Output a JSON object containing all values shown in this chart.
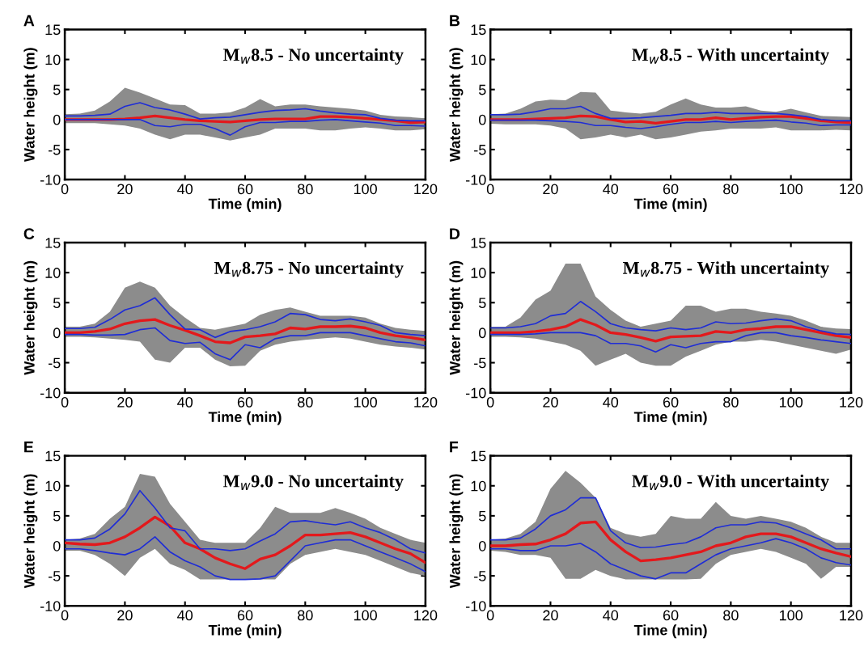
{
  "chart_data": [
    {
      "type": "line",
      "title": "M$_{w}$8.5 - No uncertainty",
      "annotations": [
        "A"
      ],
      "xlabel": "Time (min)",
      "ylabel": "Water height (m)",
      "xlim": [
        0,
        120
      ],
      "xticks": [
        0,
        20,
        40,
        60,
        80,
        100,
        120
      ],
      "ylim": [
        -10,
        15
      ],
      "yticks": [
        -10,
        -5,
        0,
        5,
        10,
        15
      ],
      "grid": false,
      "legend": false,
      "x": [
        0,
        5,
        10,
        15,
        20,
        25,
        30,
        35,
        40,
        45,
        50,
        55,
        60,
        65,
        70,
        75,
        80,
        85,
        90,
        95,
        100,
        105,
        110,
        115,
        120
      ],
      "series": [
        {
          "type": "line",
          "color": "#1f2dd6",
          "values": [
            0.6,
            0.6,
            0.7,
            0.9,
            2.2,
            2.8,
            2.0,
            1.6,
            0.9,
            0.1,
            0.3,
            0.4,
            0.8,
            1.2,
            1.5,
            1.6,
            1.8,
            1.4,
            1.1,
            0.9,
            0.8,
            0.2,
            -0.1,
            -0.2,
            -0.2
          ]
        },
        {
          "type": "line",
          "color": "#1f2dd6",
          "values": [
            0,
            0,
            0,
            0,
            0,
            0,
            -1.0,
            -1.2,
            -0.8,
            -0.8,
            -1.5,
            -2.6,
            -1.2,
            -0.5,
            -0.5,
            -0.3,
            -0.3,
            -0.1,
            0,
            -0.2,
            -0.4,
            -0.6,
            -1.0,
            -1.0,
            -1.1
          ]
        },
        {
          "type": "line",
          "color": "#e3191c",
          "values": [
            0,
            0,
            0,
            0,
            0.1,
            0.3,
            0.6,
            0.3,
            0,
            -0.2,
            -0.3,
            -0.4,
            -0.2,
            0,
            0.1,
            0.1,
            0.1,
            0.5,
            0.5,
            0.4,
            0.2,
            0,
            -0.2,
            -0.5,
            -0.4
          ],
          "upper": [
            0.9,
            1.0,
            1.5,
            3.0,
            5.3,
            4.5,
            3.5,
            2.5,
            2.4,
            1.0,
            1.0,
            1.2,
            2.0,
            3.4,
            2.2,
            2.5,
            2.5,
            2.2,
            2.0,
            1.8,
            1.5,
            0.8,
            0.5,
            0.4,
            0.2
          ],
          "lower": [
            -0.6,
            -0.6,
            -0.6,
            -0.8,
            -1.0,
            -1.5,
            -2.5,
            -3.3,
            -2.5,
            -2.5,
            -3.0,
            -3.5,
            -3.0,
            -2.5,
            -1.5,
            -1.5,
            -1.5,
            -1.8,
            -1.8,
            -1.5,
            -1.3,
            -1.5,
            -1.8,
            -1.8,
            -1.6
          ]
        }
      ]
    },
    {
      "type": "line",
      "title": "M$_{w}$8.5 - With uncertainty",
      "annotations": [
        "B"
      ],
      "xlabel": "Time (min)",
      "ylabel": "Water height (m)",
      "xlim": [
        0,
        120
      ],
      "xticks": [
        0,
        20,
        40,
        60,
        80,
        100,
        120
      ],
      "ylim": [
        -10,
        15
      ],
      "yticks": [
        -10,
        -5,
        0,
        5,
        10,
        15
      ],
      "grid": false,
      "legend": false,
      "x": [
        0,
        5,
        10,
        15,
        20,
        25,
        30,
        35,
        40,
        45,
        50,
        55,
        60,
        65,
        70,
        75,
        80,
        85,
        90,
        95,
        100,
        105,
        110,
        115,
        120
      ],
      "series": [
        {
          "type": "line",
          "color": "#1f2dd6",
          "values": [
            0.8,
            0.8,
            0.9,
            1.3,
            1.8,
            1.8,
            2.2,
            1.0,
            0.2,
            0.2,
            0.3,
            0.5,
            0.7,
            1.0,
            1.0,
            1.2,
            1.0,
            1.0,
            1.0,
            1.0,
            0.8,
            0.5,
            0,
            -0.2,
            -0.2
          ]
        },
        {
          "type": "line",
          "color": "#1f2dd6",
          "values": [
            -0.1,
            -0.1,
            -0.1,
            -0.1,
            -0.2,
            -0.3,
            -0.5,
            -1.0,
            -1.0,
            -1.3,
            -1.5,
            -1.2,
            -0.8,
            -0.5,
            -0.5,
            -0.3,
            -0.5,
            -0.3,
            -0.2,
            -0.1,
            -0.4,
            -0.6,
            -1.0,
            -0.9,
            -0.9
          ]
        },
        {
          "type": "line",
          "color": "#e3191c",
          "values": [
            0,
            0,
            0,
            0.1,
            0.2,
            0.3,
            0.6,
            0.5,
            0,
            -0.4,
            -0.3,
            -0.6,
            -0.3,
            0,
            0,
            0.3,
            0,
            0.2,
            0.4,
            0.5,
            0.5,
            0.2,
            -0.2,
            -0.4,
            -0.5
          ],
          "upper": [
            0.9,
            1.0,
            1.8,
            3.0,
            3.3,
            3.2,
            4.6,
            4.5,
            1.5,
            1.2,
            1.0,
            1.3,
            2.5,
            3.5,
            2.5,
            2.0,
            2.0,
            2.2,
            1.5,
            1.3,
            1.8,
            1.2,
            0.6,
            0.5,
            0.4
          ],
          "lower": [
            -0.7,
            -0.8,
            -0.8,
            -0.8,
            -1.0,
            -1.5,
            -3.3,
            -3.0,
            -2.5,
            -3.0,
            -2.5,
            -3.3,
            -3.0,
            -2.5,
            -2.0,
            -1.8,
            -1.5,
            -1.5,
            -1.5,
            -1.3,
            -1.8,
            -1.8,
            -1.8,
            -1.7,
            -1.8
          ]
        }
      ]
    },
    {
      "type": "line",
      "title": "M$_{w}$8.75 - No uncertainty",
      "annotations": [
        "C"
      ],
      "xlabel": "Time (min)",
      "ylabel": "Water height (m)",
      "xlim": [
        0,
        120
      ],
      "xticks": [
        0,
        20,
        40,
        60,
        80,
        100,
        120
      ],
      "ylim": [
        -10,
        15
      ],
      "yticks": [
        -10,
        -5,
        0,
        5,
        10,
        15
      ],
      "grid": false,
      "legend": false,
      "x": [
        0,
        5,
        10,
        15,
        20,
        25,
        30,
        35,
        40,
        45,
        50,
        55,
        60,
        65,
        70,
        75,
        80,
        85,
        90,
        95,
        100,
        105,
        110,
        115,
        120
      ],
      "series": [
        {
          "type": "line",
          "color": "#1f2dd6",
          "values": [
            0.7,
            0.7,
            0.9,
            2.2,
            3.8,
            4.5,
            5.8,
            3.0,
            0.6,
            0.5,
            -0.8,
            0.2,
            0.5,
            1.0,
            1.8,
            3.2,
            3.0,
            2.2,
            2.0,
            2.3,
            1.8,
            1.2,
            0,
            -0.3,
            -0.5
          ]
        },
        {
          "type": "line",
          "color": "#1f2dd6",
          "values": [
            -0.3,
            -0.3,
            -0.4,
            -0.4,
            -0.3,
            0.5,
            0.8,
            -1.3,
            -1.8,
            -1.6,
            -3.5,
            -4.5,
            -2.0,
            -2.5,
            -1.0,
            -0.5,
            -0.5,
            0,
            0,
            0,
            -0.5,
            -1.0,
            -1.5,
            -1.7,
            -2.2
          ]
        },
        {
          "type": "line",
          "color": "#e3191c",
          "values": [
            0,
            0,
            0.2,
            0.6,
            1.5,
            2.0,
            2.2,
            1.2,
            0.4,
            -0.5,
            -1.5,
            -1.7,
            -0.7,
            -0.5,
            -0.2,
            0.8,
            0.6,
            1.0,
            1.0,
            1.1,
            0.8,
            0,
            -0.5,
            -0.8,
            -1.2
          ],
          "upper": [
            1.0,
            1.0,
            1.5,
            3.5,
            7.5,
            8.5,
            7.5,
            4.5,
            2.5,
            0.8,
            0.5,
            1.0,
            1.5,
            3.0,
            3.8,
            4.2,
            3.5,
            2.8,
            2.8,
            2.8,
            2.5,
            1.5,
            0.8,
            0.5,
            0.3
          ],
          "lower": [
            -0.7,
            -0.7,
            -0.8,
            -1.0,
            -1.2,
            -1.5,
            -4.5,
            -5.0,
            -2.5,
            -2.5,
            -4.5,
            -5.6,
            -5.5,
            -3.0,
            -2.0,
            -1.5,
            -1.2,
            -1.0,
            -0.8,
            -1.0,
            -1.5,
            -2.0,
            -2.3,
            -2.5,
            -2.8
          ]
        }
      ]
    },
    {
      "type": "line",
      "title": "M$_{w}$8.75 - With uncertainty",
      "annotations": [
        "D"
      ],
      "xlabel": "Time (min)",
      "ylabel": "Water height (m)",
      "xlim": [
        0,
        120
      ],
      "xticks": [
        0,
        20,
        40,
        60,
        80,
        100,
        120
      ],
      "ylim": [
        -10,
        15
      ],
      "yticks": [
        -10,
        -5,
        0,
        5,
        10,
        15
      ],
      "grid": false,
      "legend": false,
      "x": [
        0,
        5,
        10,
        15,
        20,
        25,
        30,
        35,
        40,
        45,
        50,
        55,
        60,
        65,
        70,
        75,
        80,
        85,
        90,
        95,
        100,
        105,
        110,
        115,
        120
      ],
      "series": [
        {
          "type": "line",
          "color": "#1f2dd6",
          "values": [
            0.8,
            0.8,
            1.0,
            1.5,
            2.8,
            3.2,
            5.2,
            3.5,
            1.5,
            0.8,
            0.5,
            0.3,
            0.8,
            0.5,
            0.8,
            1.8,
            1.5,
            1.6,
            2.0,
            2.3,
            2.0,
            1.0,
            0.3,
            -0.2,
            -0.3
          ]
        },
        {
          "type": "line",
          "color": "#1f2dd6",
          "values": [
            -0.3,
            -0.3,
            -0.3,
            -0.2,
            0,
            0,
            0,
            -0.5,
            -1.8,
            -1.8,
            -2.2,
            -3.2,
            -2.0,
            -2.5,
            -1.8,
            -1.5,
            -1.5,
            -0.5,
            0,
            0,
            -0.5,
            -0.8,
            -1.2,
            -1.5,
            -1.8
          ]
        },
        {
          "type": "line",
          "color": "#e3191c",
          "values": [
            0,
            0,
            0,
            0.2,
            0.5,
            1.0,
            2.2,
            1.3,
            0,
            -0.3,
            -0.8,
            -1.4,
            -0.7,
            -0.6,
            -0.5,
            0.2,
            0,
            0.5,
            0.7,
            1.0,
            1.0,
            0.5,
            0,
            -0.5,
            -0.8
          ],
          "upper": [
            1.0,
            1.0,
            2.5,
            5.5,
            7.0,
            11.5,
            11.5,
            6.0,
            3.8,
            2.0,
            1.0,
            1.5,
            2.0,
            4.5,
            4.5,
            3.5,
            4.0,
            4.0,
            3.5,
            3.2,
            2.8,
            2.0,
            1.0,
            0.7,
            0.6
          ],
          "lower": [
            -0.7,
            -0.7,
            -0.8,
            -1.0,
            -1.5,
            -2.0,
            -3.0,
            -5.5,
            -4.5,
            -3.5,
            -5.0,
            -5.5,
            -5.5,
            -4.0,
            -3.0,
            -2.0,
            -1.5,
            -1.5,
            -1.2,
            -1.5,
            -2.0,
            -2.5,
            -3.0,
            -3.5,
            -2.8
          ]
        }
      ]
    },
    {
      "type": "line",
      "title": "M$_{w}$9.0 - No uncertainty",
      "annotations": [
        "E"
      ],
      "xlabel": "Time (min)",
      "ylabel": "Water height (m)",
      "xlim": [
        0,
        120
      ],
      "xticks": [
        0,
        20,
        40,
        60,
        80,
        100,
        120
      ],
      "ylim": [
        -10,
        15
      ],
      "yticks": [
        -10,
        -5,
        0,
        5,
        10,
        15
      ],
      "grid": false,
      "legend": false,
      "x": [
        0,
        5,
        10,
        15,
        20,
        25,
        30,
        35,
        40,
        45,
        50,
        55,
        60,
        65,
        70,
        75,
        80,
        85,
        90,
        95,
        100,
        105,
        110,
        115,
        120
      ],
      "series": [
        {
          "type": "line",
          "color": "#1f2dd6",
          "values": [
            1.0,
            1.0,
            1.3,
            2.8,
            5.3,
            9.2,
            6.3,
            3.0,
            2.5,
            -0.5,
            -0.5,
            -0.8,
            -0.5,
            0.8,
            2.0,
            4.0,
            4.2,
            3.8,
            3.5,
            4.0,
            3.0,
            2.2,
            1.0,
            -0.5,
            -1.2
          ]
        },
        {
          "type": "line",
          "color": "#1f2dd6",
          "values": [
            -0.5,
            -0.5,
            -0.8,
            -1.2,
            -1.5,
            -0.5,
            1.5,
            -1.0,
            -2.5,
            -3.5,
            -5.0,
            -5.6,
            -5.6,
            -5.5,
            -5.0,
            -2.5,
            0,
            0.5,
            1.0,
            1.0,
            0,
            -1.0,
            -2.0,
            -3.0,
            -4.3
          ]
        },
        {
          "type": "line",
          "color": "#e3191c",
          "values": [
            0.5,
            0.3,
            0.2,
            0.5,
            1.5,
            3.0,
            4.8,
            3.3,
            0.5,
            -0.5,
            -2.0,
            -3.0,
            -3.8,
            -2.2,
            -1.5,
            0,
            1.8,
            1.8,
            2.0,
            2.2,
            1.5,
            0.5,
            -0.5,
            -1.3,
            -2.8
          ],
          "upper": [
            1.0,
            1.2,
            2.0,
            4.5,
            6.5,
            12.0,
            11.5,
            7.0,
            4.0,
            1.0,
            0.5,
            0.5,
            0.5,
            3.0,
            6.5,
            5.5,
            5.5,
            5.5,
            6.3,
            5.5,
            4.5,
            3.0,
            2.0,
            1.0,
            0.5
          ],
          "lower": [
            -0.8,
            -0.8,
            -1.5,
            -3.0,
            -5.0,
            -2.0,
            -0.5,
            -3.0,
            -4.0,
            -5.6,
            -5.6,
            -5.6,
            -5.6,
            -5.6,
            -5.6,
            -3.0,
            -1.5,
            -1.0,
            -0.5,
            -1.0,
            -1.5,
            -2.5,
            -3.5,
            -4.5,
            -5.0
          ]
        }
      ]
    },
    {
      "type": "line",
      "title": "M$_{w}$9.0 - With uncertainty",
      "annotations": [
        "F"
      ],
      "xlabel": "Time (min)",
      "ylabel": "Water height (m)",
      "xlim": [
        0,
        120
      ],
      "xticks": [
        0,
        20,
        40,
        60,
        80,
        100,
        120
      ],
      "ylim": [
        -10,
        15
      ],
      "yticks": [
        -10,
        -5,
        0,
        5,
        10,
        15
      ],
      "grid": false,
      "legend": false,
      "x": [
        0,
        5,
        10,
        15,
        20,
        25,
        30,
        35,
        40,
        45,
        50,
        55,
        60,
        65,
        70,
        75,
        80,
        85,
        90,
        95,
        100,
        105,
        110,
        115,
        120
      ],
      "series": [
        {
          "type": "line",
          "color": "#1f2dd6",
          "values": [
            1.0,
            1.0,
            1.3,
            2.8,
            5.0,
            6.0,
            8.0,
            8.0,
            2.5,
            0.5,
            -0.3,
            -0.2,
            0.2,
            0.5,
            1.5,
            3.0,
            3.5,
            3.5,
            4.0,
            3.8,
            3.0,
            2.0,
            1.0,
            -0.5,
            -0.5
          ]
        },
        {
          "type": "line",
          "color": "#1f2dd6",
          "values": [
            -0.5,
            -0.5,
            -0.8,
            -0.8,
            0,
            0,
            0.4,
            -1.0,
            -3.0,
            -4.0,
            -5.0,
            -5.5,
            -4.5,
            -4.5,
            -3.0,
            -1.5,
            -0.5,
            0,
            0.5,
            1.2,
            0.5,
            -0.5,
            -2.0,
            -2.8,
            -3.2
          ]
        },
        {
          "type": "line",
          "color": "#e3191c",
          "values": [
            0,
            0,
            0.2,
            0.3,
            1.0,
            2.0,
            3.8,
            4.0,
            1.0,
            -1.0,
            -2.5,
            -2.3,
            -2.0,
            -1.5,
            -1.0,
            0,
            0.5,
            1.5,
            2.0,
            2.0,
            1.5,
            0.5,
            -0.5,
            -1.2,
            -1.8
          ],
          "upper": [
            1.0,
            1.2,
            2.0,
            4.0,
            9.5,
            12.5,
            10.5,
            8.0,
            3.0,
            2.0,
            1.5,
            2.0,
            5.0,
            4.5,
            4.5,
            7.3,
            5.0,
            4.5,
            5.0,
            4.5,
            4.0,
            3.0,
            1.5,
            0.5,
            0.5
          ],
          "lower": [
            -0.8,
            -1.0,
            -1.5,
            -1.5,
            -2.0,
            -5.5,
            -5.5,
            -4.0,
            -5.0,
            -5.6,
            -5.6,
            -5.6,
            -5.6,
            -5.6,
            -5.5,
            -3.0,
            -1.5,
            -1.0,
            -0.5,
            -1.0,
            -2.0,
            -3.0,
            -5.5,
            -3.5,
            -3.5
          ]
        }
      ]
    }
  ]
}
